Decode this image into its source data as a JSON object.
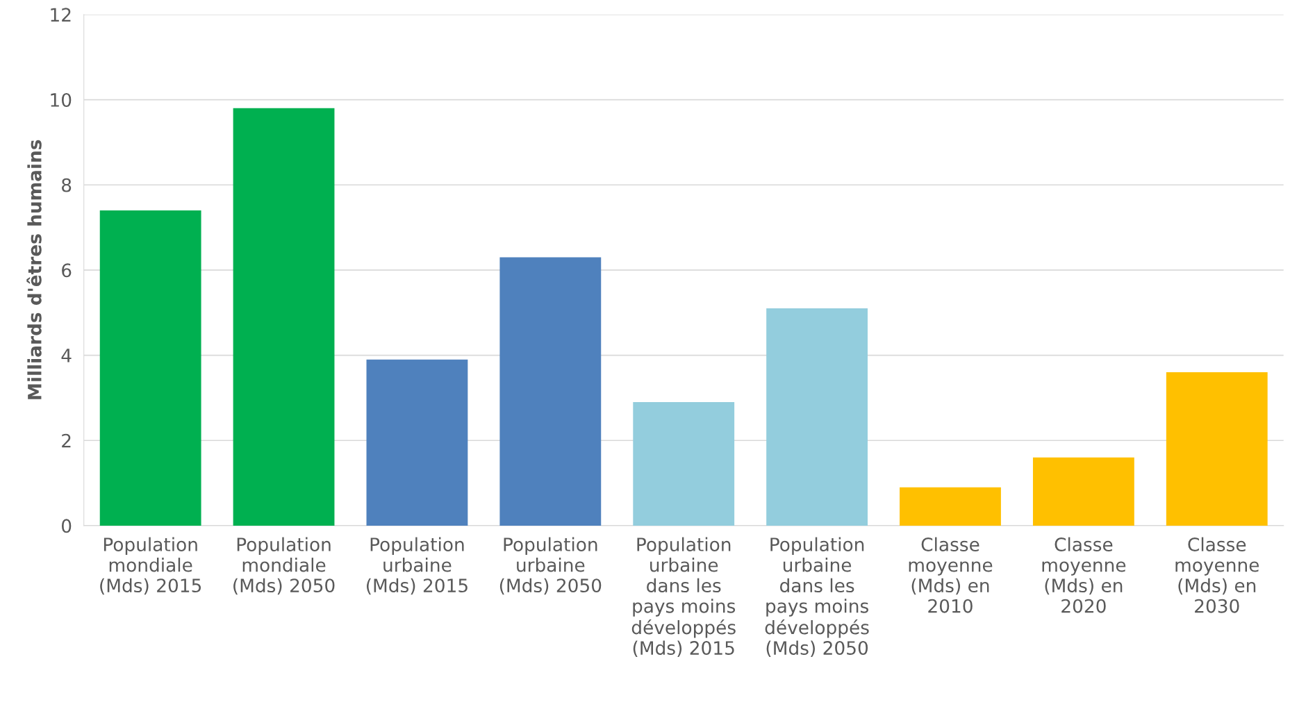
{
  "chart_data": {
    "type": "bar",
    "ylabel": "Milliards d'êtres humains",
    "categories": [
      "Population\nmondiale\n(Mds) 2015",
      "Population\nmondiale\n(Mds) 2050",
      "Population\nurbaine\n(Mds) 2015",
      "Population\nurbaine\n(Mds) 2050",
      "Population\nurbaine\ndans les\npays moins\ndéveloppés\n(Mds) 2015",
      "Population\nurbaine\ndans les\npays moins\ndéveloppés\n(Mds) 2050",
      "Classe\nmoyenne\n(Mds) en\n2010",
      "Classe\nmoyenne\n(Mds) en\n2020",
      "Classe\nmoyenne\n(Mds) en\n2030"
    ],
    "values": [
      7.4,
      9.8,
      3.9,
      6.3,
      2.9,
      5.1,
      0.9,
      1.6,
      3.6
    ],
    "colors": [
      "#00b050",
      "#00b050",
      "#4f81bd",
      "#4f81bd",
      "#93cddd",
      "#93cddd",
      "#ffc000",
      "#ffc000",
      "#ffc000"
    ],
    "ylim": [
      0,
      12
    ],
    "yticks": [
      0,
      2,
      4,
      6,
      8,
      10,
      12
    ],
    "grid": "y",
    "legend": false
  }
}
